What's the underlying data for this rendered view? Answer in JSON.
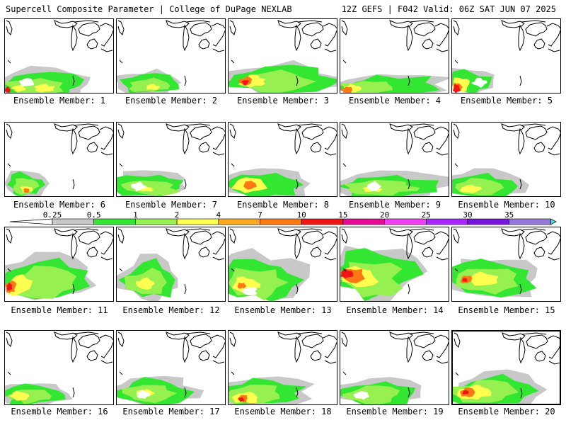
{
  "header": {
    "title_left": "Supercell Composite Parameter | College of DuPage NEXLAB",
    "title_right": "12Z GEFS | F042 Valid: 06Z SAT JUN 07 2025"
  },
  "legend": {
    "levels": [
      "0.25",
      "0.5",
      "1",
      "2",
      "4",
      "7",
      "10",
      "15",
      "20",
      "25",
      "30",
      "35"
    ],
    "colors": [
      "#c8c8c8",
      "#32e632",
      "#96f050",
      "#ffff50",
      "#ffaa1e",
      "#ff7814",
      "#f01414",
      "#e60a96",
      "#f03cf0",
      "#aa28ff",
      "#7814dc",
      "#9678dc",
      "#32f0f0"
    ]
  },
  "members": [
    {
      "label": "Ensemble Member: 1"
    },
    {
      "label": "Ensemble Member: 2"
    },
    {
      "label": "Ensemble Member: 3"
    },
    {
      "label": "Ensemble Member: 4"
    },
    {
      "label": "Ensemble Member: 5"
    },
    {
      "label": "Ensemble Member: 6"
    },
    {
      "label": "Ensemble Member: 7"
    },
    {
      "label": "Ensemble Member: 8"
    },
    {
      "label": "Ensemble Member: 9"
    },
    {
      "label": "Ensemble Member: 10"
    },
    {
      "label": "Ensemble Member: 11"
    },
    {
      "label": "Ensemble Member: 12"
    },
    {
      "label": "Ensemble Member: 13"
    },
    {
      "label": "Ensemble Member: 14"
    },
    {
      "label": "Ensemble Member: 15"
    },
    {
      "label": "Ensemble Member: 16"
    },
    {
      "label": "Ensemble Member: 17"
    },
    {
      "label": "Ensemble Member: 18"
    },
    {
      "label": "Ensemble Member: 19"
    },
    {
      "label": "Ensemble Member: 20"
    }
  ]
}
